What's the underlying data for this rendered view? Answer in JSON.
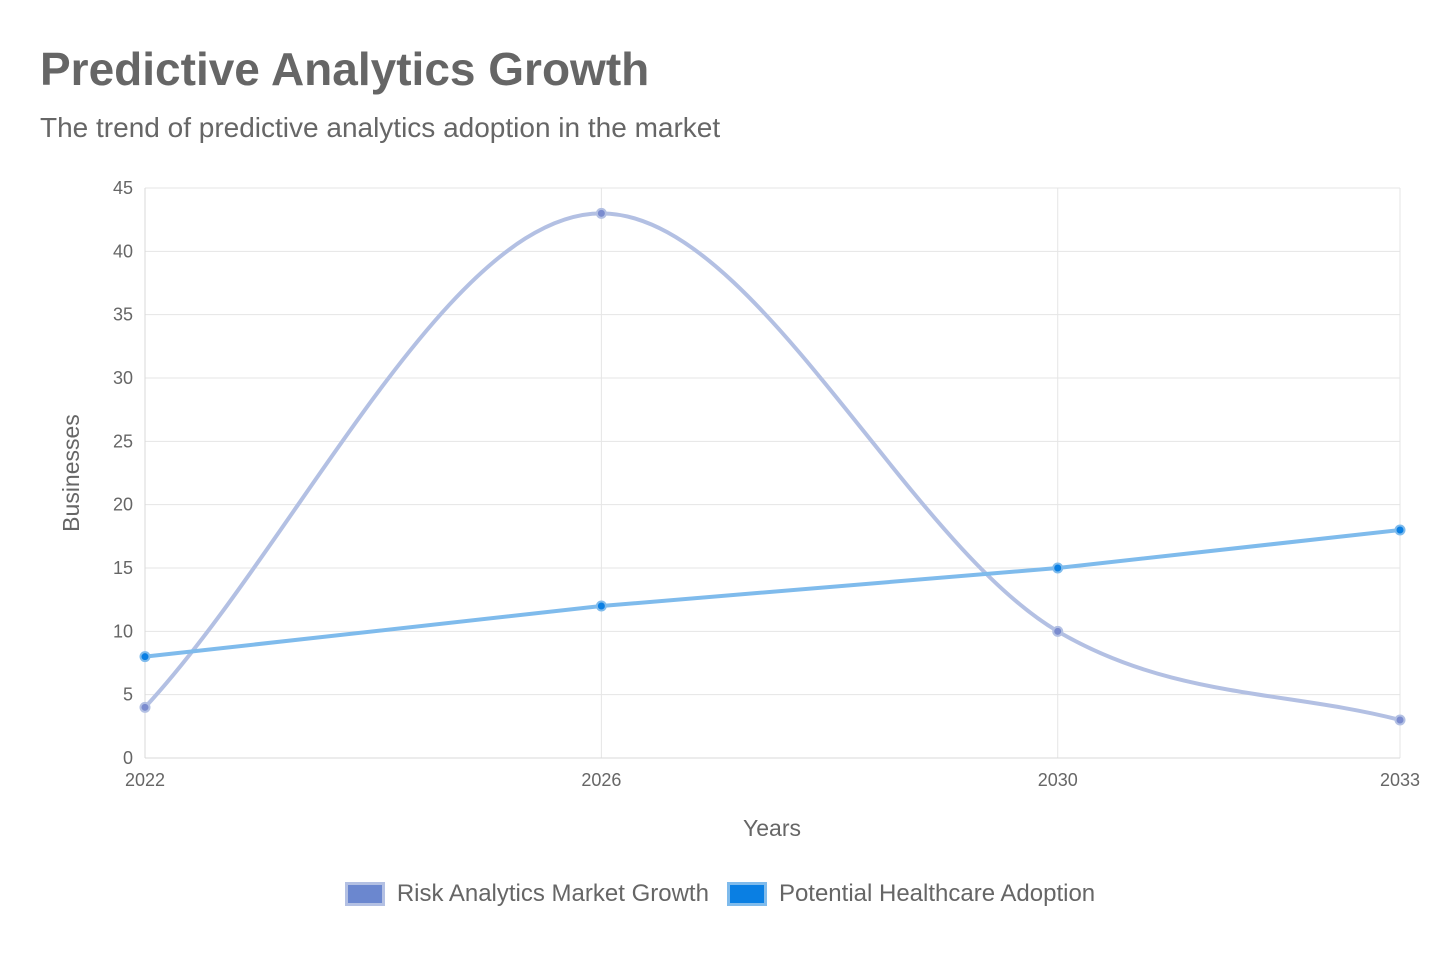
{
  "header": {
    "title": "Predictive Analytics Growth",
    "subtitle": "The trend of predictive analytics adoption in the market"
  },
  "colors": {
    "grid": "#e5e5e5",
    "text": "#666666"
  },
  "chart_data": {
    "type": "line",
    "title": "Predictive Analytics Growth",
    "subtitle": "The trend of predictive analytics adoption in the market",
    "xlabel": "Years",
    "ylabel": "Businesses",
    "x": [
      2022,
      2026,
      2030,
      2033
    ],
    "ylim": [
      0,
      45
    ],
    "yticks": [
      0,
      5,
      10,
      15,
      20,
      25,
      30,
      35,
      40,
      45
    ],
    "grid": true,
    "legend_position": "bottom",
    "series": [
      {
        "name": "Risk Analytics Market Growth",
        "values": [
          4,
          43,
          10,
          3
        ],
        "line_color": "#b3c0e3",
        "point_color": "#7b8ccf",
        "legend_fill": "#6b87cf",
        "legend_border": "#b3c0e3",
        "curved": true
      },
      {
        "name": "Potential Healthcare Adoption",
        "values": [
          8,
          12,
          15,
          18
        ],
        "line_color": "#7fbbec",
        "point_color": "#0a7fe3",
        "legend_fill": "#0a7fe3",
        "legend_border": "#7fbbec",
        "curved": false
      }
    ]
  }
}
